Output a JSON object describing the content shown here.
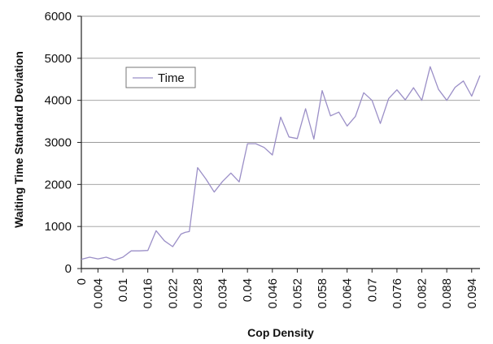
{
  "chart_data": {
    "type": "line",
    "title": "",
    "xlabel": "Cop Density",
    "ylabel": "Waiting Time Standard Deviation",
    "xlim": [
      0,
      0.096
    ],
    "ylim": [
      0,
      6000
    ],
    "x_ticks": [
      "0",
      "0.004",
      "0.01",
      "0.016",
      "0.022",
      "0.028",
      "0.034",
      "0.04",
      "0.046",
      "0.052",
      "0.058",
      "0.064",
      "0.07",
      "0.076",
      "0.082",
      "0.088",
      "0.094"
    ],
    "x_tick_values": [
      0,
      0.004,
      0.01,
      0.016,
      0.022,
      0.028,
      0.034,
      0.04,
      0.046,
      0.052,
      0.058,
      0.064,
      0.07,
      0.076,
      0.082,
      0.088,
      0.094
    ],
    "y_ticks": [
      "0",
      "1000",
      "2000",
      "3000",
      "4000",
      "5000",
      "6000"
    ],
    "y_tick_values": [
      0,
      1000,
      2000,
      3000,
      4000,
      5000,
      6000
    ],
    "grid": "horizontal",
    "legend": "upper-left",
    "series": [
      {
        "name": "Time",
        "color": "#9b8fc7",
        "x": [
          0,
          0.002,
          0.004,
          0.006,
          0.008,
          0.01,
          0.012,
          0.014,
          0.016,
          0.018,
          0.02,
          0.022,
          0.024,
          0.025,
          0.026,
          0.028,
          0.03,
          0.032,
          0.034,
          0.036,
          0.038,
          0.04,
          0.042,
          0.044,
          0.046,
          0.048,
          0.05,
          0.052,
          0.054,
          0.056,
          0.058,
          0.06,
          0.062,
          0.064,
          0.066,
          0.068,
          0.07,
          0.072,
          0.074,
          0.076,
          0.078,
          0.08,
          0.082,
          0.084,
          0.086,
          0.088,
          0.09,
          0.092,
          0.094,
          0.096
        ],
        "y": [
          220,
          270,
          230,
          270,
          200,
          270,
          420,
          420,
          430,
          900,
          660,
          520,
          820,
          860,
          880,
          2400,
          2130,
          1820,
          2070,
          2270,
          2060,
          2970,
          2970,
          2880,
          2700,
          3600,
          3130,
          3090,
          3800,
          3080,
          4230,
          3630,
          3720,
          3390,
          3620,
          4180,
          4000,
          3450,
          4040,
          4250,
          4010,
          4300,
          4000,
          4800,
          4260,
          4000,
          4310,
          4460,
          4100,
          4590
        ]
      }
    ]
  }
}
